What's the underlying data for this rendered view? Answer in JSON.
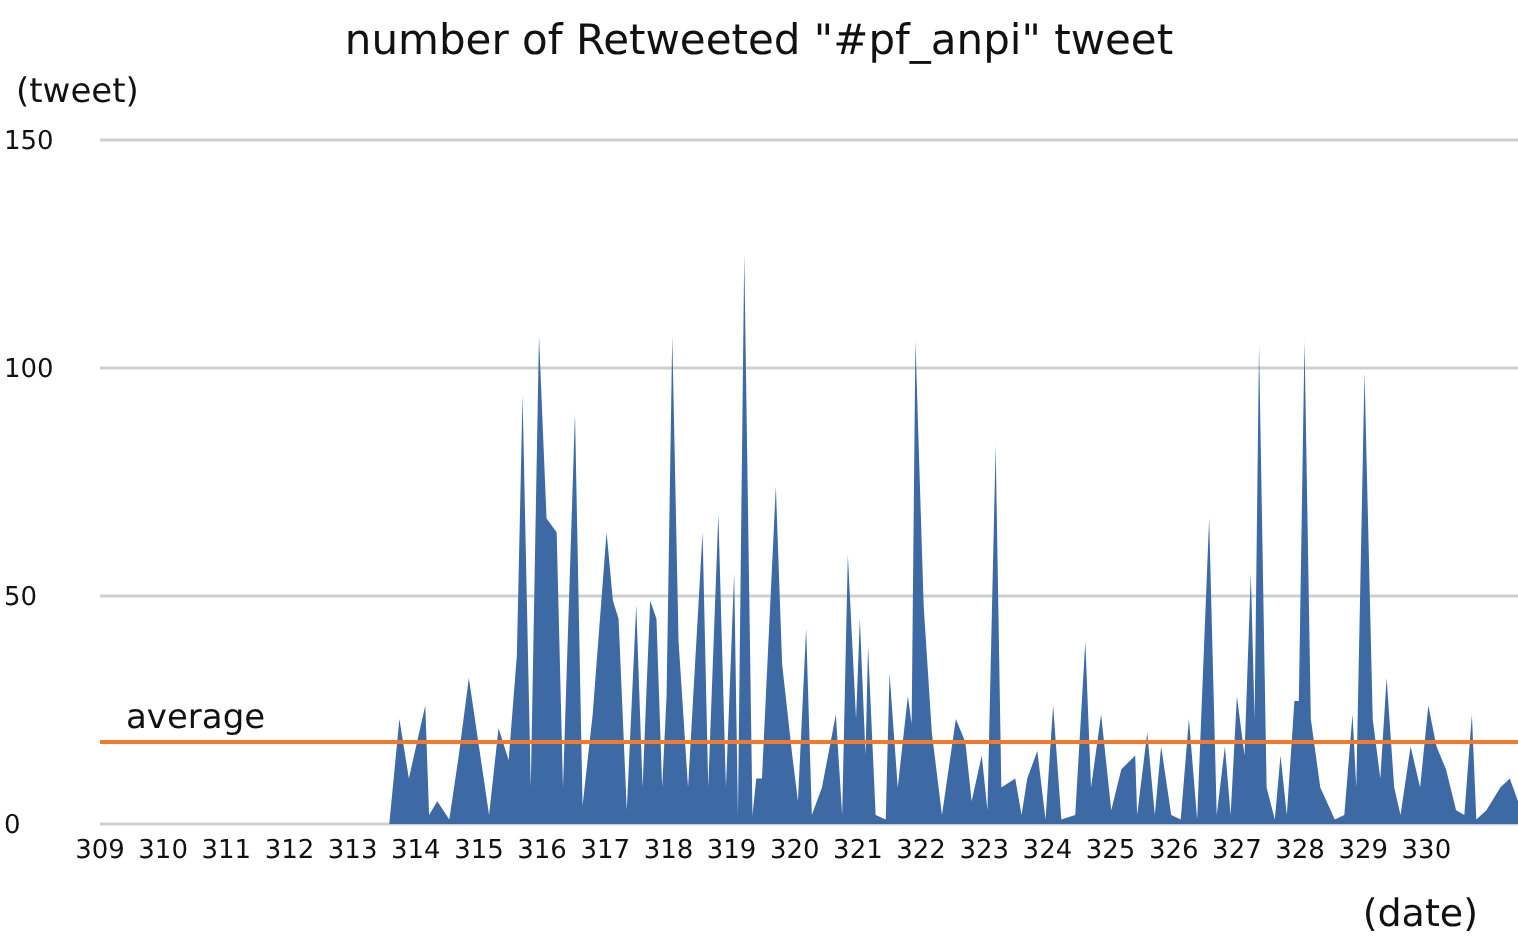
{
  "chart_data": {
    "type": "area",
    "title": "number of Retweeted  \"#pf_anpi\" tweet",
    "ylabel": "(tweet)",
    "xlabel": "(date)",
    "x": [
      309,
      313.58,
      313.74,
      313.89,
      314.15,
      314.21,
      314.34,
      314.53,
      314.68,
      314.84,
      315.0,
      315.16,
      315.31,
      315.47,
      315.6,
      315.69,
      315.82,
      315.95,
      316.07,
      316.23,
      316.33,
      316.52,
      316.64,
      316.8,
      317.02,
      317.12,
      317.21,
      317.34,
      317.49,
      317.59,
      317.71,
      317.81,
      317.9,
      317.97,
      318.06,
      318.16,
      318.31,
      318.54,
      318.63,
      318.79,
      318.91,
      319.04,
      319.1,
      319.2,
      319.33,
      319.39,
      319.48,
      319.7,
      319.8,
      319.96,
      320.05,
      320.18,
      320.27,
      320.43,
      320.65,
      320.75,
      320.84,
      320.97,
      321.03,
      321.12,
      321.16,
      321.28,
      321.44,
      321.5,
      321.63,
      321.79,
      321.85,
      321.91,
      322.04,
      322.17,
      322.33,
      322.55,
      322.7,
      322.8,
      322.96,
      323.05,
      323.18,
      323.27,
      323.49,
      323.59,
      323.68,
      323.84,
      323.97,
      324.09,
      324.22,
      324.44,
      324.6,
      324.69,
      324.85,
      325.01,
      325.17,
      325.39,
      325.42,
      325.58,
      325.7,
      325.8,
      325.96,
      326.11,
      326.24,
      326.37,
      326.56,
      326.68,
      326.81,
      326.9,
      327.0,
      327.12,
      327.22,
      327.28,
      327.35,
      327.47,
      327.6,
      327.69,
      327.79,
      327.91,
      327.98,
      328.07,
      328.17,
      328.32,
      328.55,
      328.7,
      328.83,
      328.89,
      329.02,
      329.15,
      329.27,
      329.37,
      329.49,
      329.59,
      329.75,
      329.9,
      330.03,
      330.16,
      330.31,
      330.47,
      330.6,
      330.72,
      330.79,
      330.95,
      331.17,
      331.32,
      331.45
    ],
    "series": [
      {
        "color": "#3d6aa5",
        "values": [
          0,
          0,
          23,
          10,
          26,
          2,
          5,
          1,
          15,
          32,
          17,
          2,
          21,
          14,
          37,
          94,
          8,
          107,
          67,
          64,
          8,
          90,
          4,
          24,
          64,
          49,
          45,
          3,
          48,
          8,
          49,
          45,
          8,
          28,
          107,
          40,
          8,
          64,
          8,
          68,
          8,
          55,
          2,
          125,
          2,
          10,
          10,
          74,
          35,
          15,
          5,
          43,
          2,
          8,
          24,
          2,
          59,
          23,
          45,
          15,
          39,
          2,
          1,
          33,
          8,
          28,
          22,
          106,
          48,
          20,
          2,
          23,
          18,
          5,
          15,
          3,
          83,
          8,
          10,
          2,
          10,
          16,
          1,
          26,
          1,
          2,
          40,
          8,
          24,
          3,
          12,
          15,
          2,
          20,
          2,
          17,
          2,
          1,
          23,
          1,
          67,
          2,
          17,
          2,
          28,
          15,
          55,
          23,
          105,
          8,
          1,
          15,
          2,
          27,
          27,
          106,
          23,
          8,
          1,
          2,
          24,
          8,
          99,
          23,
          10,
          32,
          8,
          2,
          17,
          8,
          26,
          17,
          12,
          3,
          2,
          24,
          1,
          3,
          8,
          10,
          5
        ]
      }
    ],
    "xlim": [
      309,
      331.45
    ],
    "xticks": [
      309,
      310,
      311,
      312,
      313,
      314,
      315,
      316,
      317,
      318,
      319,
      320,
      321,
      322,
      323,
      324,
      325,
      326,
      327,
      328,
      329,
      330
    ],
    "ylim": [
      0,
      150
    ],
    "yticks": [
      0,
      50,
      100,
      150
    ],
    "grid": "y",
    "ref_lines": [
      {
        "axis": "y",
        "value": 18,
        "label": "average",
        "color": "#f07a30"
      }
    ]
  }
}
